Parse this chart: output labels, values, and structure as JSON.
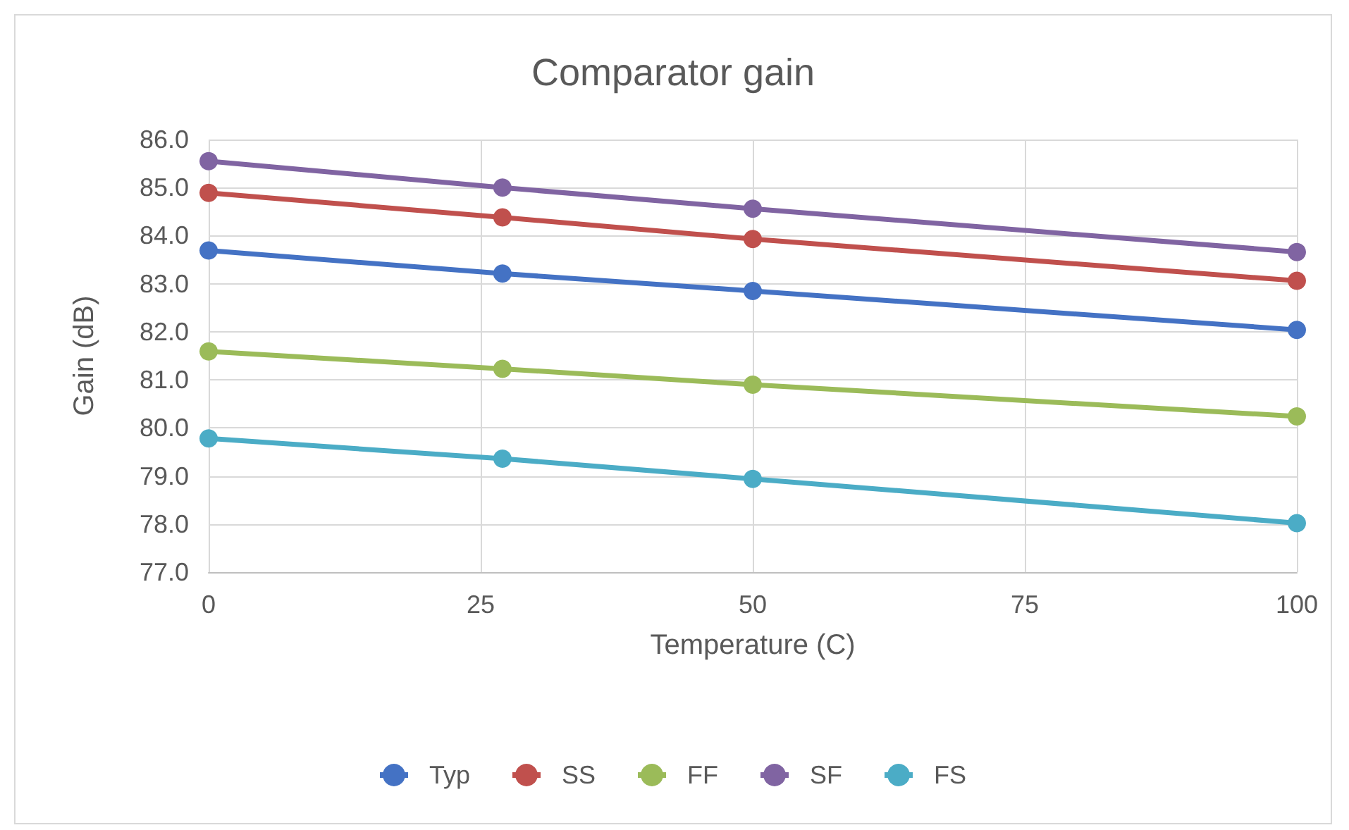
{
  "chart_data": {
    "type": "line",
    "title": "Comparator gain",
    "xlabel": "Temperature (C)",
    "ylabel": "Gain (dB)",
    "x": [
      0,
      27,
      50,
      100
    ],
    "series": [
      {
        "name": "Typ",
        "color": "#4472c4",
        "values": [
          83.69,
          83.21,
          82.85,
          82.04
        ]
      },
      {
        "name": "SS",
        "color": "#c0504d",
        "values": [
          84.89,
          84.38,
          83.93,
          83.06
        ]
      },
      {
        "name": "FF",
        "color": "#9bbb59",
        "values": [
          81.59,
          81.23,
          80.9,
          80.24
        ]
      },
      {
        "name": "SF",
        "color": "#8064a2",
        "values": [
          85.55,
          85.0,
          84.56,
          83.66
        ]
      },
      {
        "name": "FS",
        "color": "#4bacc6",
        "values": [
          79.78,
          79.36,
          78.94,
          78.02
        ]
      }
    ],
    "xlim": [
      0,
      100
    ],
    "xticks": [
      0,
      25,
      50,
      75,
      100
    ],
    "ylim": [
      77,
      86
    ],
    "yticks": [
      {
        "value": 77,
        "label": "77.0"
      },
      {
        "value": 78,
        "label": "78.0"
      },
      {
        "value": 79,
        "label": "79.0"
      },
      {
        "value": 80,
        "label": "80.0"
      },
      {
        "value": 81,
        "label": "81.0"
      },
      {
        "value": 82,
        "label": "82.0"
      },
      {
        "value": 83,
        "label": "83.0"
      },
      {
        "value": 84,
        "label": "84.0"
      },
      {
        "value": 85,
        "label": "85.0"
      },
      {
        "value": 86,
        "label": "86.0"
      }
    ],
    "grid": true,
    "legend": "bottom",
    "marker": "circle",
    "line_style": "solid"
  }
}
